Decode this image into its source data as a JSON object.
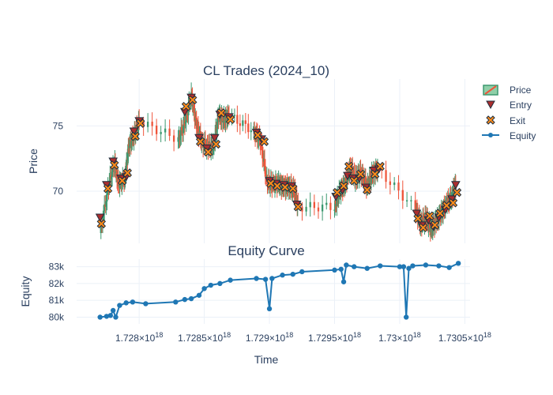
{
  "chart_data": [
    {
      "id": "price-panel",
      "type": "candlestick+scatter",
      "title": "CL Trades (2024_10)",
      "ylabel": "Price",
      "ylim": [
        66.0,
        78.6
      ],
      "yticks": [
        70,
        75
      ],
      "xlim": [
        1.72752e+18,
        1.73054e+18
      ],
      "legend": {
        "placement": "top-right",
        "items": [
          {
            "key": "price",
            "label": "Price",
            "symbol": "candle"
          },
          {
            "key": "entry",
            "label": "Entry",
            "symbol": "triangle-down",
            "color": "#ab2e2e"
          },
          {
            "key": "exit",
            "label": "Exit",
            "symbol": "x",
            "color": "#ff8c1a"
          },
          {
            "key": "equity",
            "label": "Equity",
            "symbol": "line-marker",
            "color": "#1f77b4"
          }
        ]
      },
      "colors": {
        "up": "#3d9970",
        "down": "#ef553b",
        "entry": "#ab2e2e",
        "exit": "#ff8c1a",
        "markerStroke": "#1f2f3f",
        "equity": "#1f77b4"
      },
      "price_path": [
        [
          1.7277e+18,
          66.8
        ],
        [
          1.72776e+18,
          70.2
        ],
        [
          1.72781e+18,
          72.3
        ],
        [
          1.72784e+18,
          70.5
        ],
        [
          1.72789e+18,
          71.0
        ],
        [
          1.72792e+18,
          73.5
        ],
        [
          1.72796e+18,
          74.3
        ],
        [
          1.728e+18,
          75.3
        ],
        [
          1.7283e+18,
          74.0
        ],
        [
          1.72835e+18,
          75.2
        ],
        [
          1.7284e+18,
          77.4
        ],
        [
          1.72844e+18,
          75.0
        ],
        [
          1.72848e+18,
          73.8
        ],
        [
          1.72853e+18,
          73.3
        ],
        [
          1.72857e+18,
          73.5
        ],
        [
          1.72861e+18,
          75.8
        ],
        [
          1.72865e+18,
          75.5
        ],
        [
          1.72869e+18,
          75.8
        ],
        [
          1.72888e+18,
          74.6
        ],
        [
          1.72893e+18,
          73.8
        ],
        [
          1.72898e+18,
          70.8
        ],
        [
          1.72902e+18,
          70.5
        ],
        [
          1.72907e+18,
          70.6
        ],
        [
          1.72911e+18,
          70.3
        ],
        [
          1.72915e+18,
          70.4
        ],
        [
          1.72919e+18,
          70.0
        ],
        [
          1.72922e+18,
          68.8
        ],
        [
          1.7295e+18,
          68.8
        ],
        [
          1.72954e+18,
          70.0
        ],
        [
          1.72958e+18,
          70.5
        ],
        [
          1.72962e+18,
          71.9
        ],
        [
          1.72966e+18,
          70.9
        ],
        [
          1.7297e+18,
          71.4
        ],
        [
          1.72975e+18,
          70.4
        ],
        [
          1.72979e+18,
          71.3
        ],
        [
          1.72983e+18,
          71.7
        ],
        [
          1.73012e+18,
          68.6
        ],
        [
          1.73016e+18,
          67.5
        ],
        [
          1.7302e+18,
          67.9
        ],
        [
          1.73024e+18,
          67.1
        ],
        [
          1.73028e+18,
          67.7
        ],
        [
          1.73032e+18,
          68.4
        ],
        [
          1.73036e+18,
          69.0
        ],
        [
          1.7304e+18,
          69.6
        ],
        [
          1.73043e+18,
          70.5
        ]
      ],
      "entries": [
        [
          1.7277e+18,
          68.0
        ],
        [
          1.72775e+18,
          70.5
        ],
        [
          1.7278e+18,
          72.3
        ],
        [
          1.72786e+18,
          71.0
        ],
        [
          1.7279e+18,
          71.1
        ],
        [
          1.72796e+18,
          74.6
        ],
        [
          1.728e+18,
          75.4
        ],
        [
          1.72835e+18,
          76.1
        ],
        [
          1.7284e+18,
          77.2
        ],
        [
          1.72846e+18,
          74.1
        ],
        [
          1.72852e+18,
          73.3
        ],
        [
          1.72858e+18,
          74.1
        ],
        [
          1.72862e+18,
          75.9
        ],
        [
          1.72869e+18,
          75.7
        ],
        [
          1.7289e+18,
          74.5
        ],
        [
          1.72894e+18,
          74.0
        ],
        [
          1.729e+18,
          70.8
        ],
        [
          1.72905e+18,
          70.6
        ],
        [
          1.72911e+18,
          70.5
        ],
        [
          1.72917e+18,
          70.4
        ],
        [
          1.72921e+18,
          69.0
        ],
        [
          1.72951e+18,
          69.6
        ],
        [
          1.72956e+18,
          70.1
        ],
        [
          1.7296e+18,
          71.2
        ],
        [
          1.72964e+18,
          71.0
        ],
        [
          1.72969e+18,
          71.0
        ],
        [
          1.72974e+18,
          70.3
        ],
        [
          1.7298e+18,
          71.6
        ],
        [
          1.72984e+18,
          71.7
        ],
        [
          1.73013e+18,
          68.3
        ],
        [
          1.73017e+18,
          67.4
        ],
        [
          1.73022e+18,
          67.8
        ],
        [
          1.73026e+18,
          67.3
        ],
        [
          1.7303e+18,
          68.0
        ],
        [
          1.73035e+18,
          68.6
        ],
        [
          1.7304e+18,
          69.4
        ],
        [
          1.73043e+18,
          70.5
        ]
      ],
      "exits": [
        [
          1.72771e+18,
          67.5
        ],
        [
          1.72776e+18,
          70.2
        ],
        [
          1.72781e+18,
          72.0
        ],
        [
          1.72787e+18,
          70.8
        ],
        [
          1.72791e+18,
          71.4
        ],
        [
          1.72797e+18,
          74.2
        ],
        [
          1.72801e+18,
          75.2
        ],
        [
          1.72836e+18,
          76.5
        ],
        [
          1.72841e+18,
          77.0
        ],
        [
          1.72847e+18,
          73.8
        ],
        [
          1.72853e+18,
          73.0
        ],
        [
          1.72859e+18,
          73.6
        ],
        [
          1.72863e+18,
          76.0
        ],
        [
          1.7287e+18,
          75.5
        ],
        [
          1.72891e+18,
          74.3
        ],
        [
          1.72896e+18,
          73.8
        ],
        [
          1.72901e+18,
          70.6
        ],
        [
          1.72906e+18,
          70.4
        ],
        [
          1.72912e+18,
          70.3
        ],
        [
          1.72918e+18,
          70.2
        ],
        [
          1.72922e+18,
          68.8
        ],
        [
          1.72952e+18,
          69.9
        ],
        [
          1.72957e+18,
          70.4
        ],
        [
          1.72961e+18,
          71.9
        ],
        [
          1.72965e+18,
          70.8
        ],
        [
          1.7297e+18,
          71.3
        ],
        [
          1.72975e+18,
          70.1
        ],
        [
          1.72981e+18,
          71.3
        ],
        [
          1.72985e+18,
          71.9
        ],
        [
          1.73014e+18,
          67.9
        ],
        [
          1.73018e+18,
          67.2
        ],
        [
          1.73023e+18,
          68.1
        ],
        [
          1.73027e+18,
          67.4
        ],
        [
          1.73031e+18,
          68.3
        ],
        [
          1.73036e+18,
          68.9
        ],
        [
          1.73041e+18,
          69.1
        ],
        [
          1.73044e+18,
          69.9
        ]
      ]
    },
    {
      "id": "equity-panel",
      "type": "line",
      "title": "Equity Curve",
      "xlabel": "Time",
      "ylabel": "Equity",
      "ylim": [
        79600,
        83450
      ],
      "yticks": [
        80000,
        81000,
        82000,
        83000
      ],
      "ytick_labels": [
        "80k",
        "81k",
        "82k",
        "83k"
      ],
      "xlim": [
        1.72752e+18,
        1.73054e+18
      ],
      "xticks": [
        1.728e+18,
        1.7285e+18,
        1.729e+18,
        1.7295e+18,
        1.73e+18,
        1.7305e+18
      ],
      "xtick_labels": [
        {
          "base": "1.728×10",
          "exp": "18"
        },
        {
          "base": "1.7285×10",
          "exp": "18"
        },
        {
          "base": "1.729×10",
          "exp": "18"
        },
        {
          "base": "1.7295×10",
          "exp": "18"
        },
        {
          "base": "1.73×10",
          "exp": "18"
        },
        {
          "base": "1.7305×10",
          "exp": "18"
        }
      ],
      "series": [
        {
          "name": "Equity",
          "color": "#1f77b4",
          "points": [
            [
              1.7277e+18,
              80000
            ],
            [
              1.72775e+18,
              80050
            ],
            [
              1.72778e+18,
              80100
            ],
            [
              1.7278e+18,
              80400
            ],
            [
              1.72782e+18,
              80000
            ],
            [
              1.72785e+18,
              80700
            ],
            [
              1.7279e+18,
              80850
            ],
            [
              1.72795e+18,
              80900
            ],
            [
              1.72805e+18,
              80800
            ],
            [
              1.72828e+18,
              80900
            ],
            [
              1.72835e+18,
              81050
            ],
            [
              1.7284e+18,
              81100
            ],
            [
              1.72846e+18,
              81300
            ],
            [
              1.7285e+18,
              81700
            ],
            [
              1.72855e+18,
              81900
            ],
            [
              1.72862e+18,
              82000
            ],
            [
              1.7287e+18,
              82200
            ],
            [
              1.7289e+18,
              82300
            ],
            [
              1.72897e+18,
              82250
            ],
            [
              1.729e+18,
              80500
            ],
            [
              1.72902e+18,
              82300
            ],
            [
              1.7291e+18,
              82500
            ],
            [
              1.72918e+18,
              82550
            ],
            [
              1.72925e+18,
              82700
            ],
            [
              1.7295e+18,
              82800
            ],
            [
              1.72955e+18,
              82850
            ],
            [
              1.72957e+18,
              82100
            ],
            [
              1.72959e+18,
              83100
            ],
            [
              1.72965e+18,
              83000
            ],
            [
              1.72975e+18,
              82900
            ],
            [
              1.72985e+18,
              83050
            ],
            [
              1.73e+18,
              83000
            ],
            [
              1.73003e+18,
              83000
            ],
            [
              1.73005e+18,
              80000
            ],
            [
              1.73007e+18,
              82900
            ],
            [
              1.7301e+18,
              83050
            ],
            [
              1.7302e+18,
              83100
            ],
            [
              1.7303e+18,
              83050
            ],
            [
              1.73038e+18,
              82950
            ],
            [
              1.73045e+18,
              83200
            ]
          ]
        }
      ]
    }
  ]
}
